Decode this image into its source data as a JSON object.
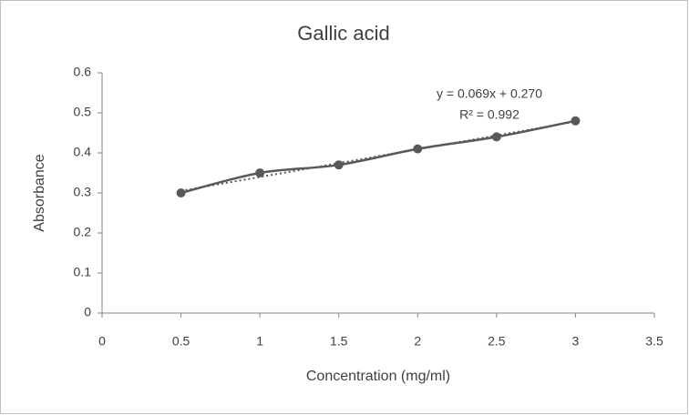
{
  "chart_data": {
    "type": "scatter",
    "title": "Gallic acid",
    "x_label": "Concentration (mg/ml)",
    "y_label": "Absorbance",
    "x": [
      0.5,
      1,
      1.5,
      2,
      2.5,
      3
    ],
    "series": [
      {
        "name": "Gallic acid",
        "color": "#595959",
        "values": [
          0.3,
          0.35,
          0.37,
          0.41,
          0.44,
          0.48
        ]
      }
    ],
    "trendline": {
      "style": "dotted",
      "equation": "y = 0.069x + 0.270",
      "r_squared": "R² = 0.992"
    },
    "xlim": [
      0,
      3.5
    ],
    "xticks": [
      0,
      0.5,
      1,
      1.5,
      2,
      2.5,
      3,
      3.5
    ],
    "ylim": [
      0,
      0.6
    ],
    "yticks": [
      0,
      0.1,
      0.2,
      0.3,
      0.4,
      0.5,
      0.6
    ],
    "grid": false
  }
}
